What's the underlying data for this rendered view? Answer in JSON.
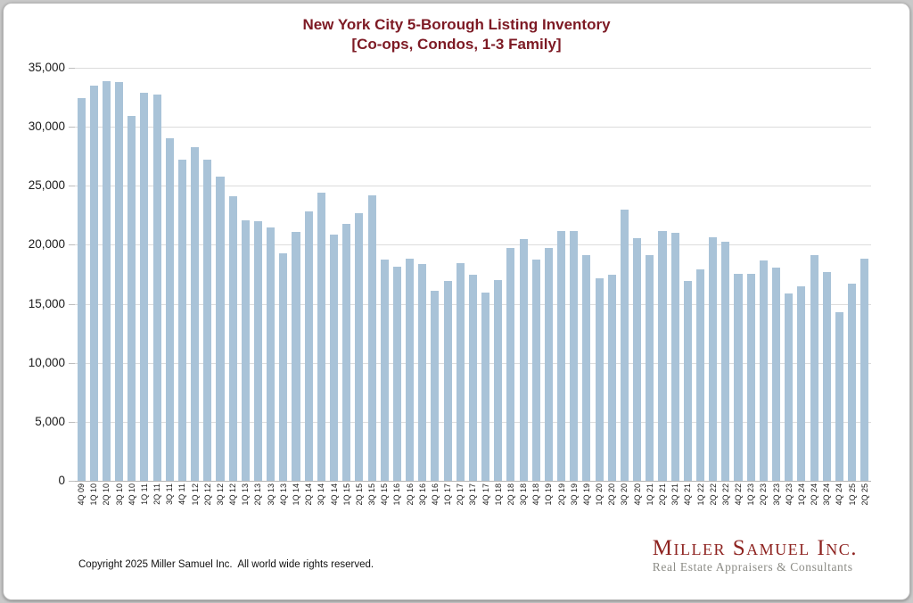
{
  "chart_data": {
    "type": "bar",
    "title": "New York City 5-Borough Listing Inventory",
    "subtitle": "[Co-ops, Condos, 1-3 Family]",
    "categories": [
      "4Q 09",
      "1Q 10",
      "2Q 10",
      "3Q 10",
      "4Q 10",
      "1Q 11",
      "2Q 11",
      "3Q 11",
      "4Q 11",
      "1Q 12",
      "2Q 12",
      "3Q 12",
      "4Q 12",
      "1Q 13",
      "2Q 13",
      "3Q 13",
      "4Q 13",
      "1Q 14",
      "2Q 14",
      "3Q 14",
      "4Q 14",
      "1Q 15",
      "2Q 15",
      "3Q 15",
      "4Q 15",
      "1Q 16",
      "2Q 16",
      "3Q 16",
      "4Q 16",
      "1Q 17",
      "2Q 17",
      "3Q 17",
      "4Q 17",
      "1Q 18",
      "2Q 18",
      "3Q 18",
      "4Q 18",
      "1Q 19",
      "2Q 19",
      "3Q 19",
      "4Q 19",
      "1Q 20",
      "2Q 20",
      "3Q 20",
      "4Q 20",
      "1Q 21",
      "2Q 21",
      "3Q 21",
      "4Q 21",
      "1Q 22",
      "2Q 22",
      "3Q 22",
      "4Q 22",
      "1Q 23",
      "2Q 23",
      "3Q 23",
      "4Q 23",
      "1Q 24",
      "2Q 24",
      "3Q 24",
      "4Q 24",
      "1Q 25",
      "2Q 25"
    ],
    "values": [
      32450,
      33500,
      33850,
      33800,
      30950,
      32900,
      32750,
      29050,
      27250,
      28250,
      27250,
      25800,
      24100,
      22050,
      22000,
      21500,
      19250,
      21100,
      22800,
      24450,
      20850,
      21800,
      22650,
      24200,
      18750,
      18150,
      18800,
      18400,
      16100,
      16950,
      18450,
      17500,
      15950,
      17000,
      19750,
      20500,
      18750,
      19700,
      21200,
      21200,
      19100,
      17150,
      17500,
      22950,
      20550,
      19100,
      21150,
      21050,
      16950,
      17900,
      20650,
      20250,
      17550,
      17550,
      18650,
      18050,
      15900,
      16450,
      19150,
      17700,
      14300,
      16700,
      18800
    ],
    "ylim": [
      0,
      35000
    ],
    "ytick_interval": 5000,
    "ytick_labels_top_to_bottom": [
      "35,000",
      "30,000",
      "25,000",
      "20,000",
      "15,000",
      "10,000",
      "5,000",
      "0"
    ],
    "grid": true,
    "legend": "none",
    "xlabel": "",
    "ylabel": ""
  },
  "footer": {
    "copyright": "Copyright 2025 Miller Samuel Inc.  All world wide rights reserved.",
    "logo_name": "Miller Samuel Inc.",
    "logo_tagline": "Real Estate Appraisers & Consultants"
  },
  "colors": {
    "title": "#7d1a24",
    "bar": "#a9c3d8",
    "gridline": "#dcdcdc",
    "axis_line": "#b3b3b3",
    "logo_red": "#8e2320",
    "tagline_gray": "#8b8b85"
  }
}
